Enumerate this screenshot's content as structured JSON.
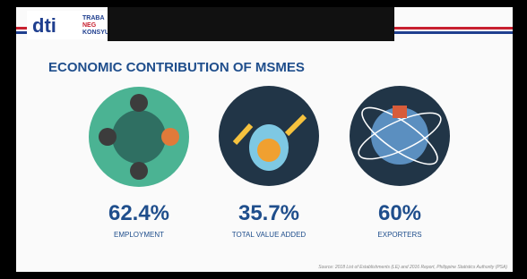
{
  "header": {
    "logo": "dti",
    "tagline": [
      "TRABA",
      "NEG",
      "KONSYUMER"
    ]
  },
  "title": "ECONOMIC CONTRIBUTION OF MSMES",
  "stats": [
    {
      "value": "62.4%",
      "label": "EMPLOYMENT"
    },
    {
      "value": "35.7%",
      "label": "TOTAL VALUE ADDED"
    },
    {
      "value": "60%",
      "label": "EXPORTERS"
    }
  ],
  "source": "Source: 2018 List of Establishments (LE) and 2016 Report, Philippine Statistics Authority (PSA)"
}
